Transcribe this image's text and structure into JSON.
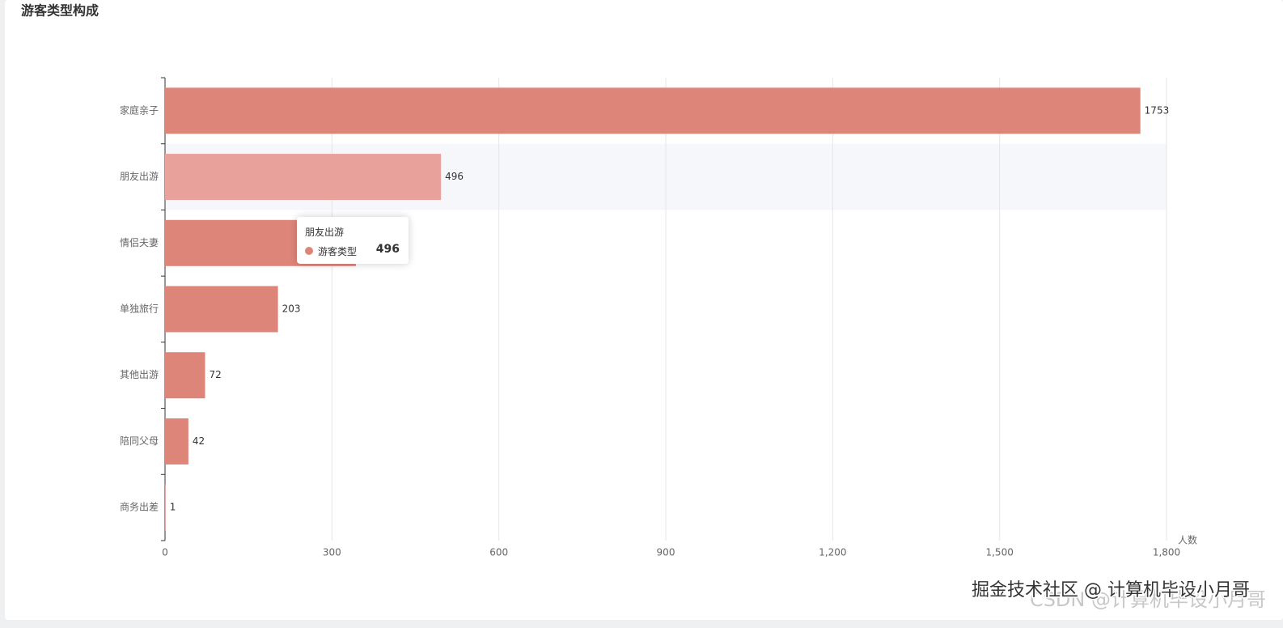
{
  "chart_data": {
    "type": "bar",
    "orientation": "horizontal",
    "title": "游客类型构成",
    "categories": [
      "家庭亲子",
      "朋友出游",
      "情侣夫妻",
      "单独旅行",
      "其他出游",
      "陪同父母",
      "商务出差"
    ],
    "series": [
      {
        "name": "游客类型",
        "color": "#de857a",
        "values": [
          1753,
          496,
          343,
          203,
          72,
          42,
          1
        ]
      }
    ],
    "xlabel": "人数",
    "xlim": [
      0,
      1800
    ],
    "xticks": [
      0,
      300,
      600,
      900,
      {
        "value": 1200,
        "label": "1,200"
      },
      {
        "value": 1500,
        "label": "1,500"
      },
      {
        "value": 1800,
        "label": "1,800"
      }
    ],
    "grid": true,
    "emphasis_color": "#e8a19b"
  },
  "watermark": {
    "main": "掘金技术社区 @ 计算机毕设小月哥",
    "faint": "CSDN @计算机毕设小月哥"
  }
}
